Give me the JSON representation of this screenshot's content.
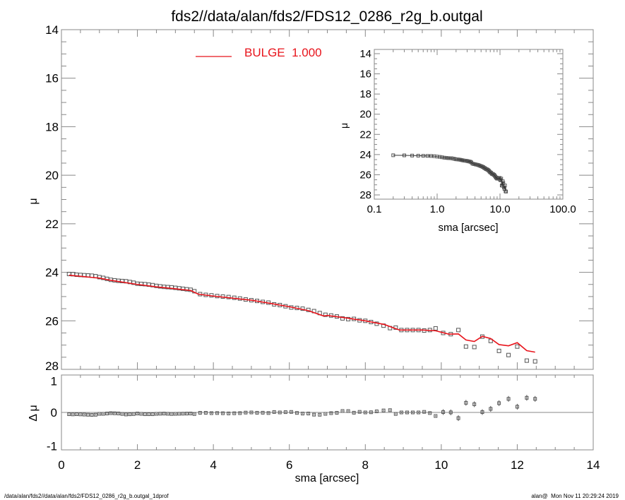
{
  "title": "fds2//data/alan/fds2/FDS12_0286_r2g_b.outgal",
  "footer_left": "/data/alan/fds2//data/alan/fds2/FDS12_0286_r2g_b.outgal_1dprof",
  "footer_right": "alan@  Mon Nov 11 20:29:24 2019",
  "colors": {
    "model": "#e8141c",
    "data": "#555555",
    "axis": "#888888"
  },
  "chart_data": [
    {
      "type": "scatter",
      "panel": "main",
      "xlabel": "sma [arcsec]",
      "ylabel": "μ",
      "xlim": [
        0,
        14
      ],
      "ylim": [
        28,
        14
      ],
      "xticks": [
        "0",
        "2",
        "4",
        "6",
        "8",
        "10",
        "12",
        "14"
      ],
      "yticks": [
        "14",
        "16",
        "18",
        "20",
        "22",
        "24",
        "26",
        "28"
      ],
      "legend": {
        "label": "BULGE  1.000",
        "placement": "top-center"
      },
      "series": [
        {
          "kind": "data-points",
          "marker": "open-square",
          "x": [
            0.2,
            0.3,
            0.4,
            0.5,
            0.6,
            0.7,
            0.8,
            0.9,
            1.0,
            1.1,
            1.2,
            1.3,
            1.4,
            1.5,
            1.6,
            1.7,
            1.8,
            1.9,
            2.0,
            2.1,
            2.2,
            2.3,
            2.4,
            2.5,
            2.6,
            2.7,
            2.8,
            2.9,
            3.0,
            3.1,
            3.2,
            3.3,
            3.4,
            3.5,
            3.65,
            3.8,
            3.95,
            4.1,
            4.25,
            4.4,
            4.55,
            4.7,
            4.85,
            5.0,
            5.15,
            5.3,
            5.45,
            5.6,
            5.75,
            5.9,
            6.05,
            6.2,
            6.35,
            6.5,
            6.65,
            6.8,
            6.95,
            7.1,
            7.25,
            7.4,
            7.55,
            7.7,
            7.85,
            8.0,
            8.15,
            8.3,
            8.48,
            8.65,
            8.8,
            8.95,
            9.1,
            9.25,
            9.4,
            9.55,
            9.7,
            9.85,
            10.05,
            10.25,
            10.45,
            10.65,
            10.87,
            11.08,
            11.3,
            11.52,
            11.77,
            12.0,
            12.25,
            12.47
          ],
          "y": [
            24.07,
            24.08,
            24.1,
            24.11,
            24.12,
            24.13,
            24.14,
            24.16,
            24.2,
            24.23,
            24.27,
            24.31,
            24.33,
            24.35,
            24.36,
            24.37,
            24.4,
            24.43,
            24.47,
            24.48,
            24.49,
            24.51,
            24.53,
            24.56,
            24.58,
            24.6,
            24.61,
            24.62,
            24.64,
            24.66,
            24.68,
            24.7,
            24.72,
            24.78,
            24.9,
            24.93,
            24.95,
            24.98,
            25.0,
            25.02,
            25.05,
            25.08,
            25.12,
            25.15,
            25.18,
            25.22,
            25.25,
            25.32,
            25.35,
            25.4,
            25.45,
            25.47,
            25.5,
            25.55,
            25.6,
            25.68,
            25.75,
            25.78,
            25.82,
            25.9,
            25.93,
            25.92,
            25.98,
            26.0,
            26.05,
            26.12,
            26.2,
            26.3,
            26.28,
            26.38,
            26.38,
            26.38,
            26.38,
            26.4,
            26.38,
            26.31,
            26.5,
            26.55,
            26.38,
            27.06,
            27.08,
            26.65,
            26.83,
            27.24,
            27.41,
            27.06,
            27.64,
            27.67
          ]
        },
        {
          "kind": "model-line",
          "name": "BULGE  1.000",
          "x": [
            0.2,
            1.0,
            1.3,
            2.0,
            2.5,
            3.0,
            3.4,
            3.6,
            4.0,
            5.0,
            5.5,
            6.0,
            6.5,
            6.9,
            7.0,
            7.5,
            8.0,
            8.5,
            8.9,
            9.5,
            9.85,
            10.2,
            10.45,
            10.65,
            10.87,
            11.08,
            11.3,
            11.52,
            11.77,
            12.0,
            12.25,
            12.47
          ],
          "y": [
            24.12,
            24.24,
            24.33,
            24.5,
            24.6,
            24.68,
            24.75,
            24.9,
            24.98,
            25.15,
            25.28,
            25.42,
            25.58,
            25.8,
            25.78,
            25.88,
            26.0,
            26.15,
            26.38,
            26.38,
            26.41,
            26.55,
            26.54,
            26.79,
            26.85,
            26.64,
            26.73,
            26.98,
            27.03,
            26.9,
            27.23,
            27.29
          ]
        }
      ]
    },
    {
      "type": "scatter",
      "panel": "residual",
      "ylabel": "Δ μ",
      "xlabel": "sma [arcsec]",
      "xlim": [
        0,
        14
      ],
      "ylim": [
        -1.05,
        1.05
      ],
      "yticks": [
        "1",
        "0",
        "-1"
      ],
      "note_source": "residual = data μ − model μ"
    },
    {
      "type": "scatter",
      "panel": "inset",
      "xlabel": "sma [arcsec]",
      "ylabel": "μ",
      "xscale": "log",
      "xlim": [
        0.1,
        100
      ],
      "ylim": [
        28,
        14
      ],
      "xticks": [
        "0.1",
        "1.0",
        "10.0",
        "100.0"
      ],
      "yticks": [
        "14",
        "16",
        "18",
        "20",
        "22",
        "24",
        "26",
        "28"
      ]
    }
  ]
}
